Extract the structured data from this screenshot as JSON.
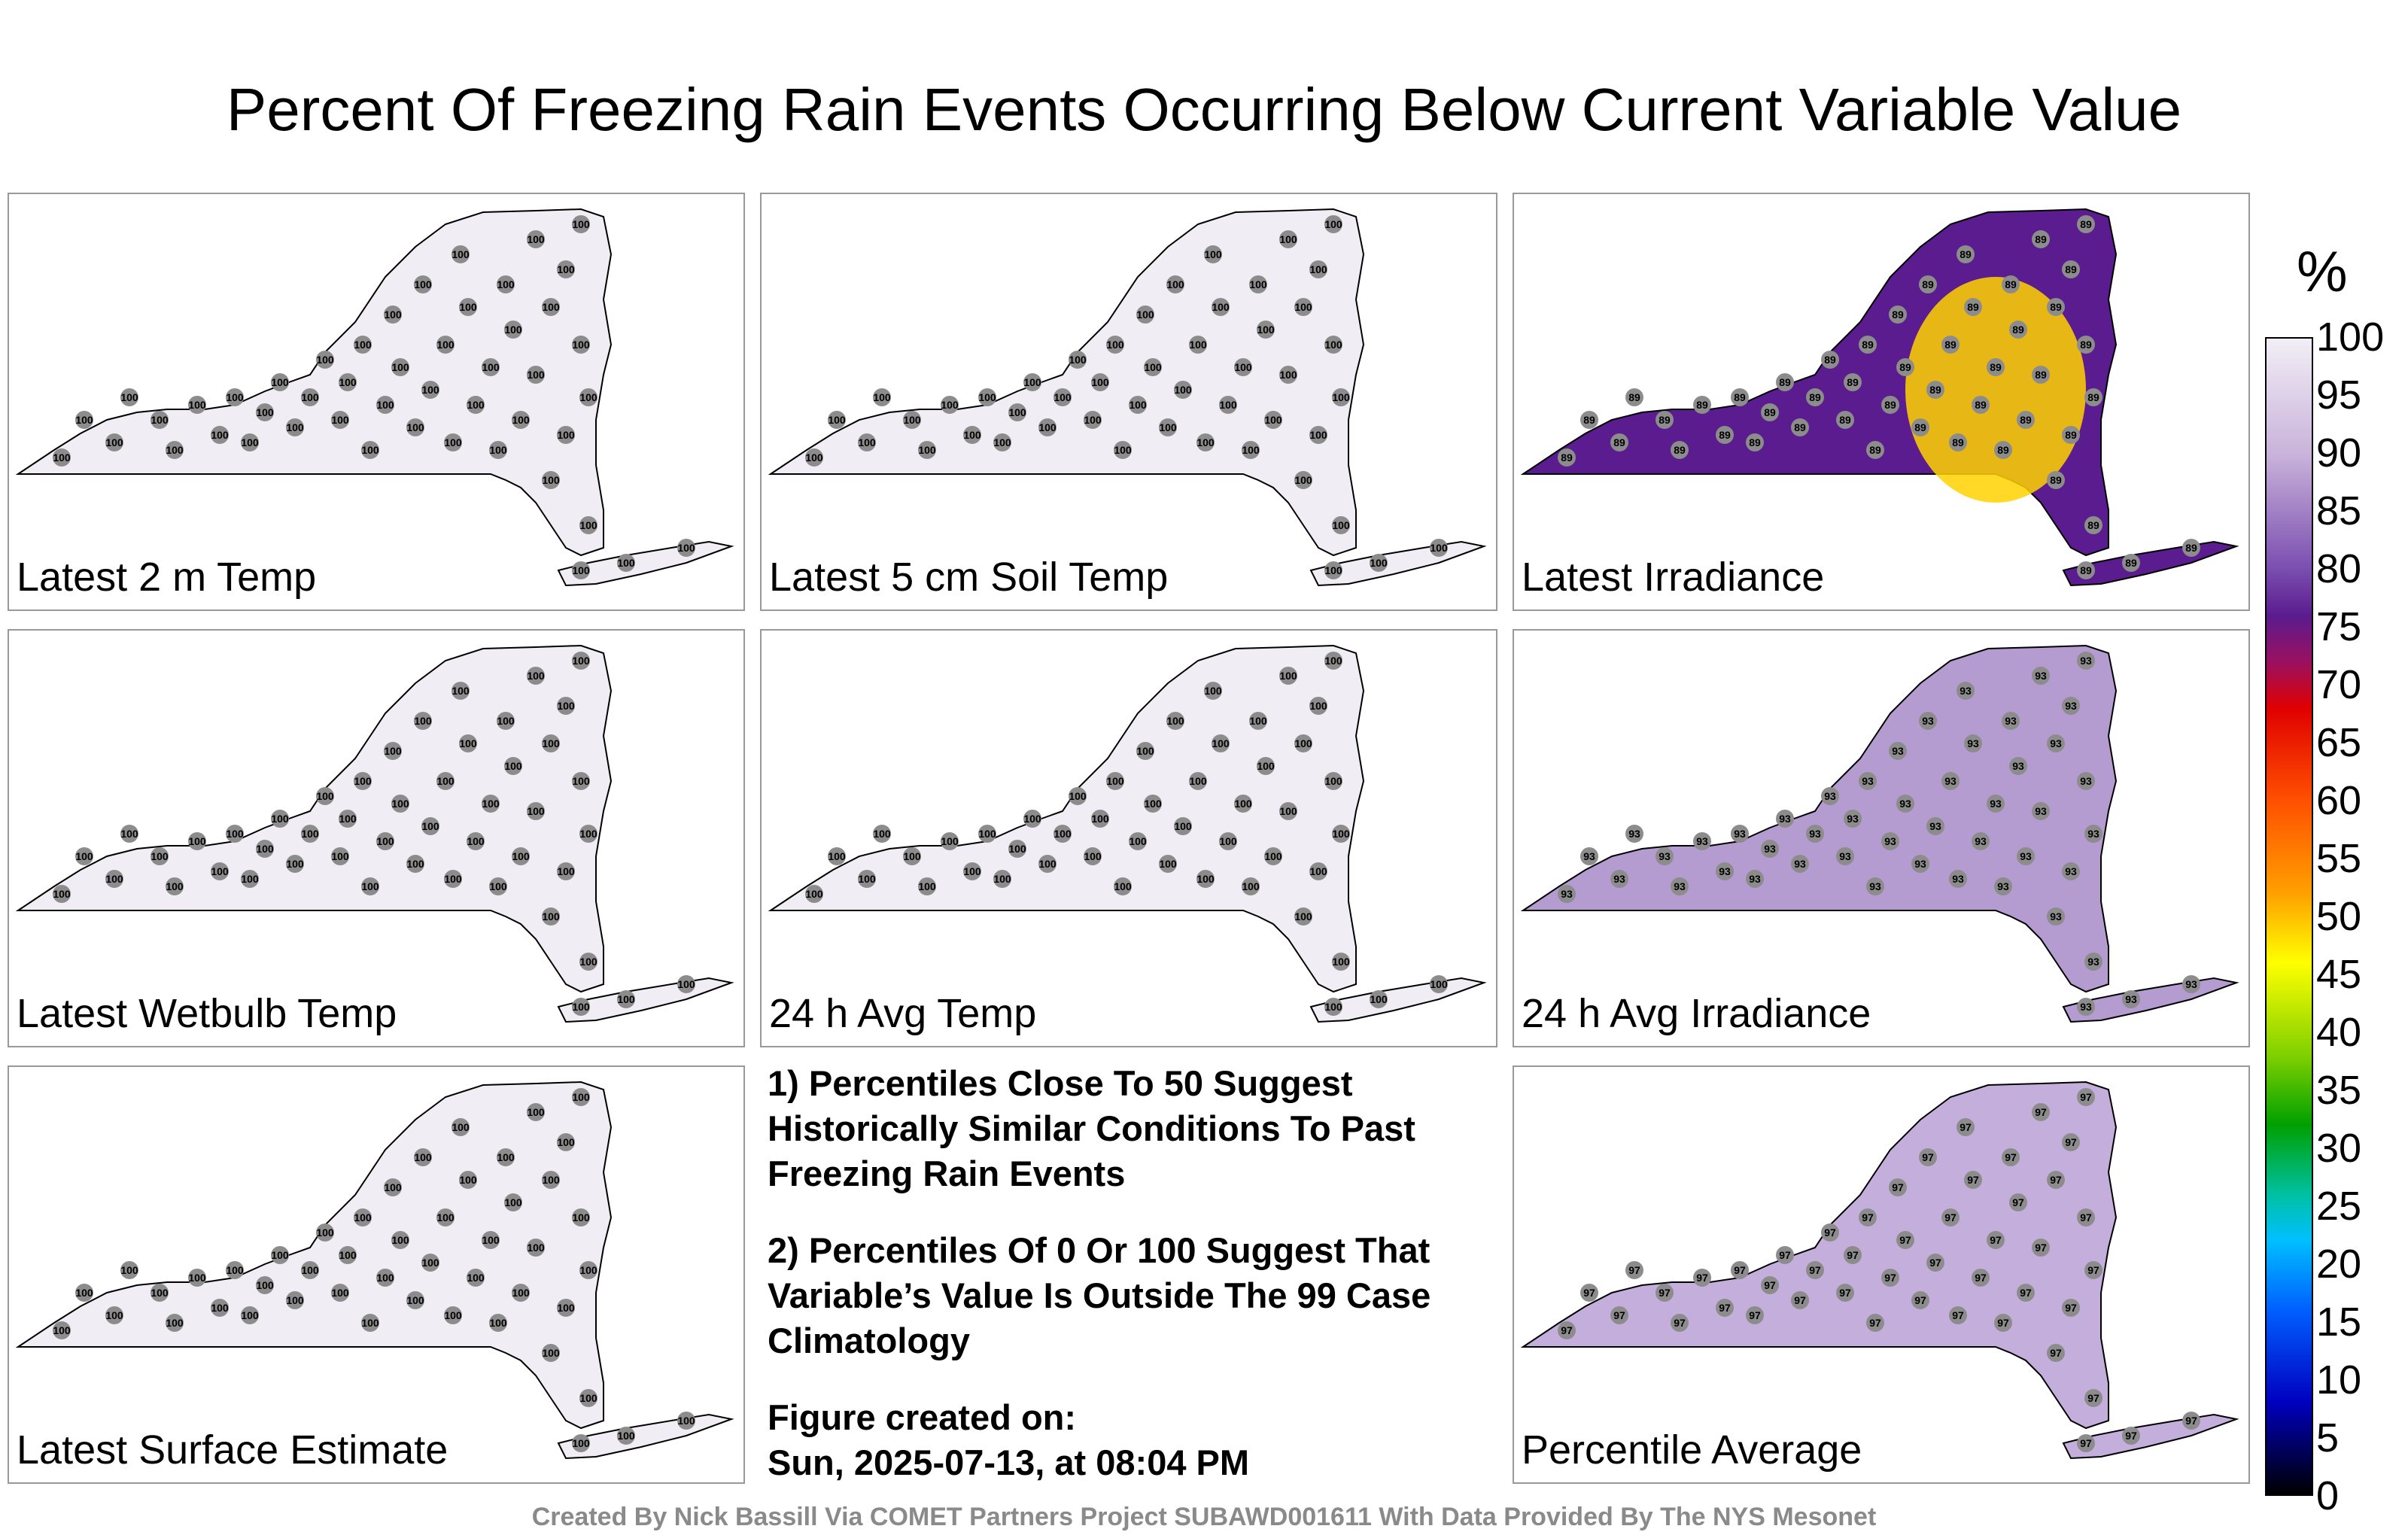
{
  "title": "Percent Of Freezing Rain Events Occurring Below Current Variable Value",
  "panels": [
    {
      "label": "Latest 2 m Temp",
      "fill": "#f1edf5",
      "value": 100
    },
    {
      "label": "Latest 5 cm Soil Temp",
      "fill": "#f1edf5",
      "value": 100
    },
    {
      "label": "Latest Irradiance",
      "fill": "#5a1c8e",
      "hot": "#ffd200",
      "value": 89
    },
    {
      "label": "Latest Wetbulb Temp",
      "fill": "#f1edf5",
      "value": 100
    },
    {
      "label": "24 h Avg Temp",
      "fill": "#f1edf5",
      "value": 100
    },
    {
      "label": "24 h Avg Irradiance",
      "fill": "#b49bd0",
      "value": 93
    },
    {
      "label": "Latest Surface Estimate",
      "fill": "#f1edf5",
      "value": 100
    },
    {
      "label": "Percentile Average",
      "fill": "#c4afdc",
      "value": 97
    }
  ],
  "notes": {
    "n1": "1) Percentiles Close To 50 Suggest Historically Similar Conditions To Past Freezing Rain Events",
    "n2": "2) Percentiles Of 0 Or 100 Suggest That Variable’s Value Is Outside The 99 Case Climatology",
    "n3a": "Figure created on:",
    "n3b": "Sun, 2025-07-13, at 08:04 PM"
  },
  "colorbar": {
    "unit": "%",
    "ticks": [
      "100",
      "95",
      "90",
      "85",
      "80",
      "75",
      "70",
      "65",
      "60",
      "55",
      "50",
      "45",
      "40",
      "35",
      "30",
      "25",
      "20",
      "15",
      "10",
      "5",
      "0"
    ]
  },
  "footer": "Created By Nick Bassill Via COMET Partners Project SUBAWD001611 With Data Provided By The NYS Mesonet"
}
